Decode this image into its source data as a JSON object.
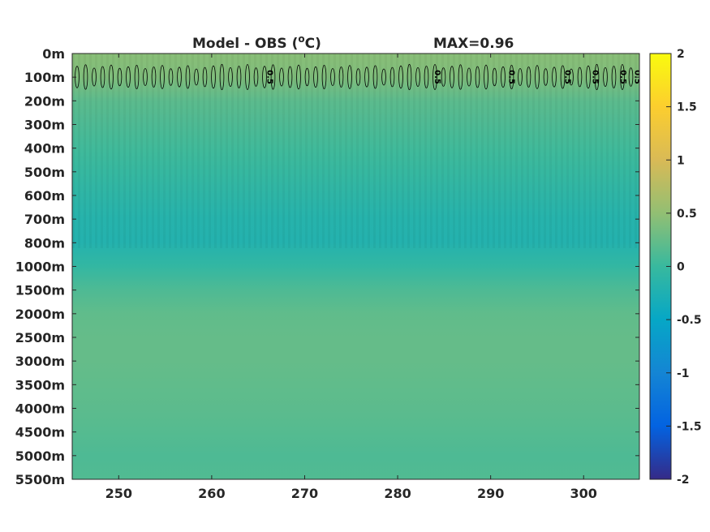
{
  "chart_data": {
    "type": "heatmap",
    "title": "Model - OBS (°C)",
    "title_prefix": "Model - OBS (",
    "title_unit_sup": "o",
    "title_unit_suffix": "C)",
    "subtitle": "MAX=0.96",
    "xlabel": "",
    "ylabel": "",
    "xlim": [
      245,
      306
    ],
    "x_ticks": [
      250,
      260,
      270,
      280,
      290,
      300
    ],
    "x_tick_labels": [
      "250",
      "260",
      "270",
      "280",
      "290",
      "300"
    ],
    "y_tick_labels": [
      "0m",
      "100m",
      "200m",
      "300m",
      "400m",
      "500m",
      "600m",
      "700m",
      "800m",
      "1000m",
      "1500m",
      "2000m",
      "2500m",
      "3000m",
      "3500m",
      "4000m",
      "4500m",
      "5000m",
      "5500m"
    ],
    "y_axis_direction": "depth increasing downward (non-linear depth levels)",
    "colorbar": {
      "range": [
        -2,
        2
      ],
      "ticks": [
        2,
        1.5,
        1,
        0.5,
        0,
        -0.5,
        -1,
        -1.5,
        -2
      ],
      "tick_labels": [
        "2",
        "1.5",
        "1",
        "0.5",
        "0",
        "-0.5",
        "-1",
        "-1.5",
        "-2"
      ],
      "colormap": "parula"
    },
    "depth_profile": {
      "depth_levels": [
        "0m",
        "100m",
        "200m",
        "300m",
        "400m",
        "500m",
        "600m",
        "700m",
        "800m",
        "1000m",
        "1500m",
        "2000m",
        "2500m",
        "3000m",
        "3500m",
        "4000m",
        "4500m",
        "5000m",
        "5500m"
      ],
      "values": [
        0.45,
        0.4,
        0.2,
        0.12,
        0.05,
        -0.02,
        -0.1,
        -0.18,
        -0.2,
        -0.05,
        0.12,
        0.22,
        0.25,
        0.25,
        0.22,
        0.2,
        0.16,
        0.12,
        0.14
      ]
    },
    "contour_level": 0.5,
    "contour_labels": [
      "0.5",
      "0.5",
      "0.5",
      "0.5",
      "0.5",
      "0.5",
      "0.5"
    ],
    "grid": false
  }
}
